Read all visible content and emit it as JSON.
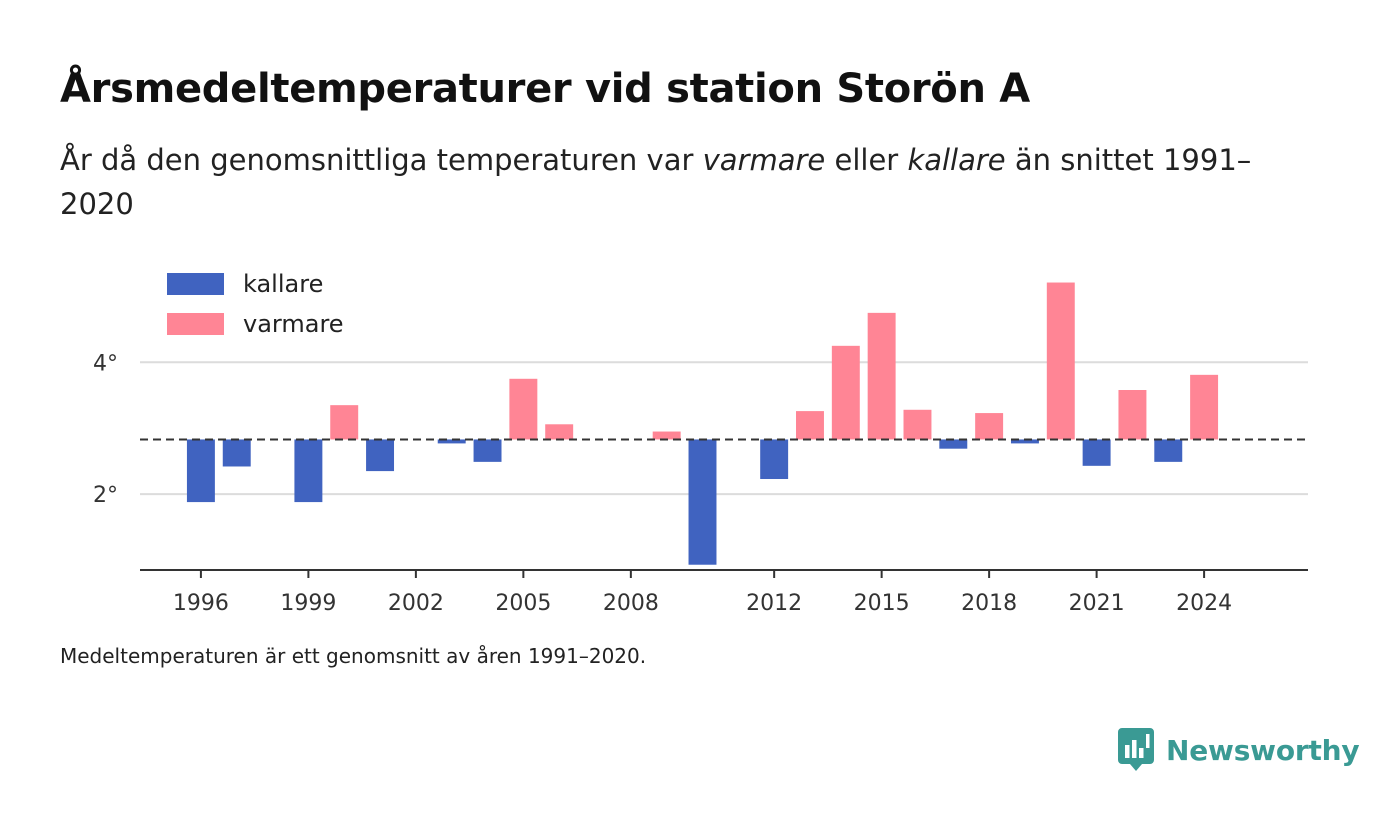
{
  "title": "Årsmedeltemperaturer vid station Storön A",
  "subtitle": {
    "part1": "År då den genomsnittliga temperaturen var ",
    "warm_word": "varmare",
    "part2": " eller ",
    "cold_word": "kallare",
    "part3": " än snittet 1991–2020"
  },
  "footnote": "Medeltemperaturen är ett genomsnitt av åren 1991–2020.",
  "brand": "Newsworthy",
  "colors": {
    "colder": "#4063c0",
    "warmer": "#ff8595",
    "brand": "#3a9a94"
  },
  "chart_data": {
    "type": "bar",
    "baseline": 2.83,
    "ylim": [
      0.85,
      5.4
    ],
    "yticks": [
      2,
      4
    ],
    "ytick_labels": [
      "2°",
      "4°"
    ],
    "xticks": [
      1996,
      1999,
      2002,
      2005,
      2008,
      2012,
      2015,
      2018,
      2021,
      2024
    ],
    "xlim": [
      1994.3,
      2026.9
    ],
    "legend": {
      "position": "top-left",
      "colder_label": "kallare",
      "warmer_label": "varmare"
    },
    "grid": true,
    "series": [
      {
        "year": 1996,
        "value": 1.88
      },
      {
        "year": 1997,
        "value": 2.42
      },
      {
        "year": 1999,
        "value": 1.88
      },
      {
        "year": 2000,
        "value": 3.35
      },
      {
        "year": 2001,
        "value": 2.35
      },
      {
        "year": 2003,
        "value": 2.77
      },
      {
        "year": 2004,
        "value": 2.49
      },
      {
        "year": 2005,
        "value": 3.75
      },
      {
        "year": 2006,
        "value": 3.06
      },
      {
        "year": 2009,
        "value": 2.95
      },
      {
        "year": 2010,
        "value": 0.93
      },
      {
        "year": 2012,
        "value": 2.23
      },
      {
        "year": 2013,
        "value": 3.26
      },
      {
        "year": 2014,
        "value": 4.25
      },
      {
        "year": 2015,
        "value": 4.75
      },
      {
        "year": 2016,
        "value": 3.28
      },
      {
        "year": 2017,
        "value": 2.69
      },
      {
        "year": 2018,
        "value": 3.23
      },
      {
        "year": 2019,
        "value": 2.77
      },
      {
        "year": 2020,
        "value": 5.21
      },
      {
        "year": 2021,
        "value": 2.43
      },
      {
        "year": 2022,
        "value": 3.58
      },
      {
        "year": 2023,
        "value": 2.49
      },
      {
        "year": 2024,
        "value": 3.81
      }
    ]
  }
}
